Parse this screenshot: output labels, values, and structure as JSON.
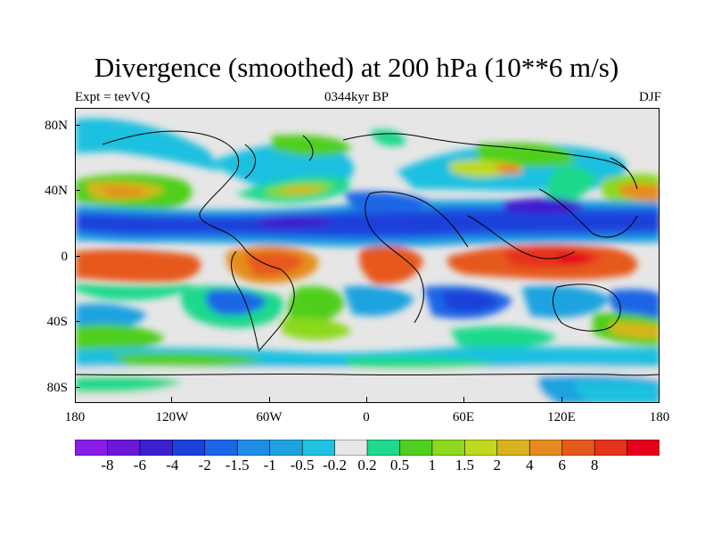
{
  "title": "Divergence (smoothed) at 200 hPa (10**6 m/s)",
  "left_subtitle": "Expt = tevVQ",
  "center_subtitle": "0344kyr BP",
  "right_subtitle": "DJF",
  "lat_labels": [
    "80N",
    "40N",
    "0",
    "40S",
    "80S"
  ],
  "lon_labels": [
    "180",
    "120W",
    "60W",
    "0",
    "60E",
    "120E",
    "180"
  ],
  "colorbar": {
    "colors": [
      "#8a1de6",
      "#6a17d9",
      "#3d1fcf",
      "#1d40d9",
      "#1a66e6",
      "#1f8ce6",
      "#1fa3e0",
      "#1fc0e0",
      "#e6e6e6",
      "#1fd98c",
      "#4fcf1f",
      "#8cd91f",
      "#c0d91f",
      "#d9b31f",
      "#e68c1f",
      "#e6591a",
      "#e6331a",
      "#e6001a"
    ],
    "labels": [
      "-8",
      "-6",
      "-4",
      "-2",
      "-1.5",
      "-1",
      "-0.5",
      "-0.2",
      "0.2",
      "0.5",
      "1",
      "1.5",
      "2",
      "4",
      "6",
      "8"
    ]
  }
}
